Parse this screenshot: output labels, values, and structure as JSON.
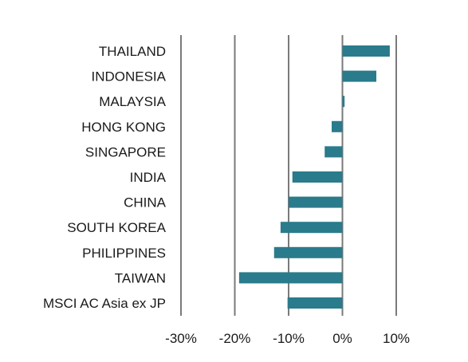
{
  "chart_data": {
    "type": "bar",
    "orientation": "horizontal",
    "categories": [
      "THAILAND",
      "INDONESIA",
      "MALAYSIA",
      "HONG KONG",
      "SINGAPORE",
      "INDIA",
      "CHINA",
      "SOUTH KOREA",
      "PHILIPPINES",
      "TAIWAN",
      "MSCI AC Asia ex JP"
    ],
    "values": [
      8.8,
      6.3,
      0.4,
      -2.0,
      -3.3,
      -9.3,
      -10.0,
      -11.5,
      -12.7,
      -19.2,
      -10.2
    ],
    "xlim": [
      -30,
      10
    ],
    "xticks": [
      -30,
      -20,
      -10,
      0,
      10
    ],
    "xtick_labels": [
      "-30%",
      "-20%",
      "-10%",
      "0%",
      "10%"
    ],
    "grid": "vertical",
    "bar_color": "#2a7b8c",
    "title": "",
    "xlabel": "",
    "ylabel": ""
  }
}
